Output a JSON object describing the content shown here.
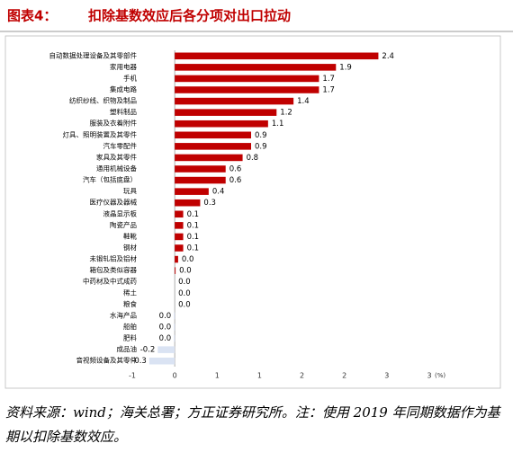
{
  "chart_data": {
    "type": "barh",
    "title_prefix": "图表4：",
    "title": "扣除基数效应后各分项对出口拉动",
    "categories": [
      "自动数据处理设备及其零部件",
      "家用电器",
      "手机",
      "集成电路",
      "纺织纱线、织物及制品",
      "塑料制品",
      "服装及衣着附件",
      "灯具、照明装置及其零件",
      "汽车零配件",
      "家具及其零件",
      "通用机械设备",
      "汽车（包括底盘）",
      "玩具",
      "医疗仪器及器械",
      "液晶显示板",
      "陶瓷产品",
      "鞋靴",
      "钢材",
      "未锻轧铝及铝材",
      "箱包及类似容器",
      "中药材及中式成药",
      "稀土",
      "粮食",
      "水海产品",
      "船舶",
      "肥料",
      "成品油",
      "音视频设备及其零件"
    ],
    "values": [
      2.4,
      1.9,
      1.7,
      1.7,
      1.4,
      1.2,
      1.1,
      0.9,
      0.9,
      0.8,
      0.6,
      0.6,
      0.4,
      0.3,
      0.1,
      0.1,
      0.1,
      0.1,
      0.04,
      0.01,
      0,
      0,
      0,
      -0.01,
      -0.01,
      -0.01,
      -0.2,
      -0.3
    ],
    "value_labels": [
      "2.4",
      "1.9",
      "1.7",
      "1.7",
      "1.4",
      "1.2",
      "1.1",
      "0.9",
      "0.9",
      "0.8",
      "0.6",
      "0.6",
      "0.4",
      "0.3",
      "0.1",
      "0.1",
      "0.1",
      "0.1",
      "0.0",
      "0.0",
      "0.0",
      "0.0",
      "0.0",
      "0.0",
      "0.0",
      "0.0",
      "-0.2",
      "-0.3"
    ],
    "positive_color": "#c00000",
    "negative_color": "#dae3f3",
    "xlim": [
      -0.5,
      3.0
    ],
    "xticks": [
      {
        "value": -0.5,
        "label": "-1"
      },
      0,
      {
        "value": 0.5,
        "label": "1"
      },
      1,
      {
        "value": 1.5,
        "label": "2"
      },
      2,
      {
        "value": 2.5,
        "label": "3"
      },
      3
    ],
    "x_unit": "(%)",
    "source": "资料来源：wind；海关总署；方正证券研究所。注：使用 2019 年同期数据作为基期以扣除基数效应。"
  }
}
